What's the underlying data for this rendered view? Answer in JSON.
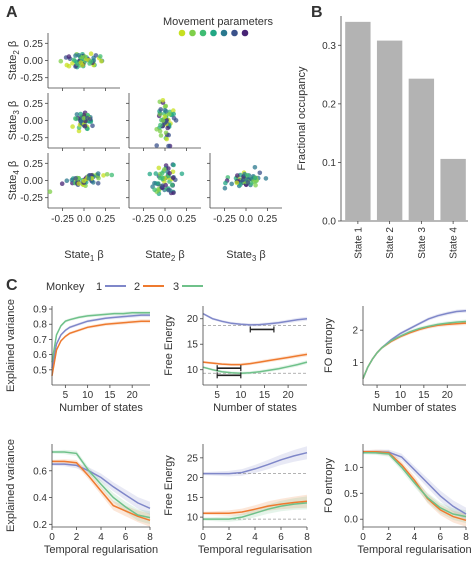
{
  "panel_labels": [
    "A",
    "B",
    "C"
  ],
  "colors": {
    "axis": "#444444",
    "text": "#333333",
    "bar": "#b3b3b3",
    "dashed": "#9a9a9a",
    "bracket": "#222222",
    "monkey1": "#7f87c9",
    "monkey2": "#ee7a2f",
    "monkey3": "#6fc18a",
    "movement_palette": [
      "#c7e020",
      "#7fcf4a",
      "#3fbc73",
      "#22a784",
      "#2a788e",
      "#3b528b",
      "#482475"
    ]
  },
  "chart_data": [
    {
      "id": "A",
      "type": "scatter",
      "legend_title": "Movement parameters",
      "legend_colors": [
        "#c7e020",
        "#7fcf4a",
        "#3fbc73",
        "#22a784",
        "#2a788e",
        "#3b528b",
        "#482475"
      ],
      "x_ticks": [
        "-0.25",
        "0.0",
        "0.25"
      ],
      "x_tick_values": [
        -0.25,
        0.0,
        0.25
      ],
      "y_ticks": [
        "0.25",
        "0.00",
        "-0.25"
      ],
      "y_tick_values": [
        0.25,
        0.0,
        -0.25
      ],
      "xlim": [
        -0.42,
        0.42
      ],
      "ylim": [
        -0.4,
        0.4
      ],
      "row_labels": [
        {
          "main": "State",
          "sub": "2",
          "suffix": " β"
        },
        {
          "main": "State",
          "sub": "3",
          "suffix": " β"
        },
        {
          "main": "State",
          "sub": "4",
          "suffix": " β"
        }
      ],
      "col_labels": [
        {
          "main": "State",
          "sub": "1",
          "suffix": " β"
        },
        {
          "main": "State",
          "sub": "2",
          "suffix": " β"
        },
        {
          "main": "State",
          "sub": "3",
          "suffix": " β"
        }
      ],
      "panels": [
        {
          "row": 0,
          "col": 0,
          "spread_x": 0.1,
          "spread_y": 0.05,
          "corr": 0.2,
          "n": 60
        },
        {
          "row": 1,
          "col": 0,
          "spread_x": 0.05,
          "spread_y": 0.06,
          "corr": 0.1,
          "n": 60
        },
        {
          "row": 1,
          "col": 1,
          "spread_x": 0.05,
          "spread_y": 0.14,
          "corr": 0.0,
          "n": 60
        },
        {
          "row": 2,
          "col": 0,
          "spread_x": 0.13,
          "spread_y": 0.05,
          "corr": 0.7,
          "n": 60
        },
        {
          "row": 2,
          "col": 1,
          "spread_x": 0.07,
          "spread_y": 0.1,
          "corr": 0.0,
          "n": 60
        },
        {
          "row": 2,
          "col": 2,
          "spread_x": 0.1,
          "spread_y": 0.05,
          "corr": 0.3,
          "n": 60
        }
      ]
    },
    {
      "id": "B",
      "type": "bar",
      "categories": [
        "State 1",
        "State 2",
        "State 3",
        "State 4"
      ],
      "values": [
        0.34,
        0.308,
        0.243,
        0.106
      ],
      "ylabel": "Fractional occupancy",
      "ylim": [
        0,
        0.35
      ],
      "y_ticks": [
        0.0,
        0.1,
        0.2,
        0.3
      ],
      "y_tick_labels": [
        "0.0",
        "0.1",
        "0.2",
        "0.3"
      ]
    },
    {
      "id": "C1",
      "type": "line",
      "xlabel": "Number of states",
      "ylabel": "Explained variance",
      "xlim": [
        2,
        24
      ],
      "ylim": [
        0.4,
        0.92
      ],
      "x_ticks": [
        5,
        10,
        15,
        20
      ],
      "y_ticks": [
        0.5,
        0.6,
        0.7,
        0.8,
        0.9
      ],
      "y_tick_labels": [
        "0.5",
        "0.6",
        "0.7",
        "0.8",
        "0.9"
      ],
      "series": [
        {
          "color": "#7f87c9",
          "x": [
            2,
            3,
            4,
            5,
            6,
            8,
            10,
            12,
            14,
            16,
            18,
            20,
            22,
            24
          ],
          "y": [
            0.51,
            0.67,
            0.73,
            0.76,
            0.78,
            0.8,
            0.82,
            0.83,
            0.84,
            0.845,
            0.85,
            0.855,
            0.86,
            0.86
          ]
        },
        {
          "color": "#ee7a2f",
          "x": [
            2,
            3,
            4,
            5,
            6,
            8,
            10,
            12,
            14,
            16,
            18,
            20,
            22,
            24
          ],
          "y": [
            0.46,
            0.63,
            0.69,
            0.72,
            0.74,
            0.76,
            0.78,
            0.79,
            0.8,
            0.805,
            0.81,
            0.815,
            0.82,
            0.82
          ]
        },
        {
          "color": "#6fc18a",
          "x": [
            2,
            3,
            4,
            5,
            6,
            8,
            10,
            12,
            14,
            16,
            18,
            20,
            22,
            24
          ],
          "y": [
            0.55,
            0.73,
            0.79,
            0.82,
            0.83,
            0.845,
            0.855,
            0.86,
            0.865,
            0.87,
            0.87,
            0.875,
            0.875,
            0.875
          ]
        }
      ]
    },
    {
      "id": "C2",
      "type": "line",
      "xlabel": "Number of states",
      "ylabel": "Free Energy",
      "xlim": [
        2,
        24
      ],
      "ylim": [
        7,
        22.5
      ],
      "x_ticks": [
        5,
        10,
        15,
        20
      ],
      "y_ticks": [
        10,
        15,
        20
      ],
      "dashed_refs": [
        18.7,
        9.3
      ],
      "brackets": [
        {
          "y": 17.9,
          "x0": 12,
          "x1": 17
        },
        {
          "y": 10.3,
          "x0": 5,
          "x1": 10
        },
        {
          "y": 8.9,
          "x0": 5,
          "x1": 10
        }
      ],
      "series": [
        {
          "color": "#7f87c9",
          "x": [
            2,
            4,
            6,
            8,
            10,
            12,
            14,
            16,
            18,
            20,
            22,
            24
          ],
          "y": [
            21,
            20,
            19.5,
            19.1,
            18.9,
            18.8,
            18.85,
            19,
            19.2,
            19.5,
            19.8,
            20
          ]
        },
        {
          "color": "#ee7a2f",
          "x": [
            2,
            4,
            6,
            8,
            10,
            12,
            14,
            16,
            18,
            20,
            22,
            24
          ],
          "y": [
            11.5,
            11.3,
            11.1,
            11.0,
            11.0,
            11.2,
            11.5,
            11.8,
            12.1,
            12.4,
            12.7,
            13
          ]
        },
        {
          "color": "#6fc18a",
          "x": [
            2,
            4,
            6,
            8,
            10,
            12,
            14,
            16,
            18,
            20,
            22,
            24
          ],
          "y": [
            10.5,
            10,
            9.6,
            9.4,
            9.3,
            9.4,
            9.6,
            9.9,
            10.2,
            10.6,
            11,
            11.5
          ]
        }
      ]
    },
    {
      "id": "C3",
      "type": "line",
      "xlabel": "Number of states",
      "ylabel": "FO entropy",
      "xlim": [
        2,
        24
      ],
      "ylim": [
        0.3,
        2.75
      ],
      "x_ticks": [
        5,
        10,
        15,
        20
      ],
      "y_ticks": [
        1,
        2
      ],
      "series": [
        {
          "color": "#7f87c9",
          "x": [
            2,
            3,
            4,
            5,
            6,
            8,
            10,
            12,
            14,
            16,
            18,
            20,
            22,
            24
          ],
          "y": [
            0.5,
            0.85,
            1.1,
            1.3,
            1.45,
            1.7,
            1.9,
            2.05,
            2.2,
            2.35,
            2.45,
            2.52,
            2.58,
            2.6
          ]
        },
        {
          "color": "#ee7a2f",
          "x": [
            2,
            3,
            4,
            5,
            6,
            8,
            10,
            12,
            14,
            16,
            18,
            20,
            22,
            24
          ],
          "y": [
            0.5,
            0.85,
            1.1,
            1.3,
            1.45,
            1.65,
            1.8,
            1.92,
            2.02,
            2.1,
            2.15,
            2.18,
            2.2,
            2.22
          ]
        },
        {
          "color": "#6fc18a",
          "x": [
            2,
            3,
            4,
            5,
            6,
            8,
            10,
            12,
            14,
            16,
            18,
            20,
            22,
            24
          ],
          "y": [
            0.5,
            0.85,
            1.1,
            1.3,
            1.45,
            1.67,
            1.82,
            1.95,
            2.05,
            2.12,
            2.18,
            2.22,
            2.25,
            2.27
          ]
        }
      ]
    },
    {
      "id": "C4",
      "type": "line",
      "xlabel": "Temporal regularisation",
      "ylabel": "Explained variance",
      "xlim": [
        0,
        8
      ],
      "ylim": [
        0.18,
        0.8
      ],
      "x_ticks": [
        0,
        2,
        4,
        6,
        8
      ],
      "y_ticks": [
        0.2,
        0.4,
        0.6
      ],
      "y_tick_labels": [
        "0.2",
        "0.4",
        "0.6"
      ],
      "series": [
        {
          "color": "#7f87c9",
          "x": [
            0,
            1,
            2,
            3,
            4,
            5,
            6,
            7,
            8
          ],
          "y": [
            0.65,
            0.65,
            0.64,
            0.6,
            0.55,
            0.48,
            0.42,
            0.36,
            0.32
          ]
        },
        {
          "color": "#ee7a2f",
          "x": [
            0,
            1,
            2,
            3,
            4,
            5,
            6,
            7,
            8
          ],
          "y": [
            0.67,
            0.67,
            0.66,
            0.56,
            0.45,
            0.34,
            0.3,
            0.26,
            0.23
          ]
        },
        {
          "color": "#6fc18a",
          "x": [
            0,
            1,
            2,
            3,
            4,
            5,
            6,
            7,
            8
          ],
          "y": [
            0.74,
            0.74,
            0.73,
            0.6,
            0.5,
            0.4,
            0.33,
            0.27,
            0.25
          ]
        }
      ]
    },
    {
      "id": "C5",
      "type": "line",
      "xlabel": "Temporal regularisation",
      "ylabel": "Free Energy",
      "xlim": [
        0,
        8
      ],
      "ylim": [
        7.5,
        28.5
      ],
      "x_ticks": [
        0,
        2,
        4,
        6,
        8
      ],
      "y_ticks": [
        10,
        15,
        20,
        25
      ],
      "dashed_refs": [
        21,
        9.5
      ],
      "series": [
        {
          "color": "#7f87c9",
          "x": [
            0,
            1,
            2,
            3,
            4,
            5,
            6,
            7,
            8
          ],
          "y": [
            21,
            21,
            21,
            21.3,
            22.2,
            23.3,
            24.5,
            25.5,
            26.3
          ]
        },
        {
          "color": "#ee7a2f",
          "x": [
            0,
            1,
            2,
            3,
            4,
            5,
            6,
            7,
            8
          ],
          "y": [
            11,
            11,
            11,
            11.3,
            12,
            12.8,
            13.3,
            13.7,
            14
          ]
        },
        {
          "color": "#6fc18a",
          "x": [
            0,
            1,
            2,
            3,
            4,
            5,
            6,
            7,
            8
          ],
          "y": [
            9.5,
            9.5,
            9.5,
            10,
            11,
            12,
            12.8,
            13.3,
            13.6
          ]
        }
      ]
    },
    {
      "id": "C6",
      "type": "line",
      "xlabel": "Temporal regularisation",
      "ylabel": "FO entropy",
      "xlim": [
        0,
        8
      ],
      "ylim": [
        -0.15,
        1.45
      ],
      "x_ticks": [
        0,
        2,
        4,
        6,
        8
      ],
      "y_ticks": [
        0.0,
        0.5,
        1.0
      ],
      "y_tick_labels": [
        "0.0",
        "0.5",
        "1.0"
      ],
      "series": [
        {
          "color": "#7f87c9",
          "x": [
            0,
            1,
            2,
            3,
            4,
            5,
            6,
            7,
            8
          ],
          "y": [
            1.3,
            1.3,
            1.29,
            1.2,
            0.95,
            0.7,
            0.45,
            0.25,
            0.1
          ]
        },
        {
          "color": "#ee7a2f",
          "x": [
            0,
            1,
            2,
            3,
            4,
            5,
            6,
            7,
            8
          ],
          "y": [
            1.3,
            1.3,
            1.28,
            1.05,
            0.75,
            0.4,
            0.18,
            0.05,
            -0.02
          ]
        },
        {
          "color": "#6fc18a",
          "x": [
            0,
            1,
            2,
            3,
            4,
            5,
            6,
            7,
            8
          ],
          "y": [
            1.28,
            1.28,
            1.26,
            1.0,
            0.7,
            0.42,
            0.22,
            0.1,
            0.05
          ]
        }
      ]
    }
  ],
  "monkey_legend": {
    "title": "Monkey",
    "entries": [
      {
        "label": "1",
        "color": "#7f87c9"
      },
      {
        "label": "2",
        "color": "#ee7a2f"
      },
      {
        "label": "3",
        "color": "#6fc18a"
      }
    ]
  }
}
